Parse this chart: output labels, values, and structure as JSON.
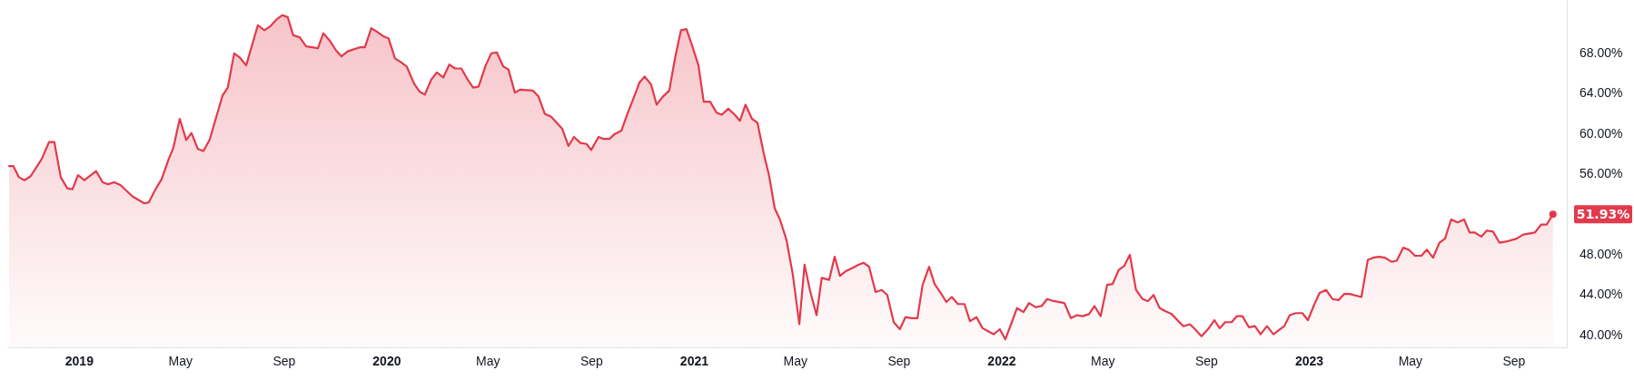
{
  "chart_data": {
    "type": "area",
    "x": [
      2018.773,
      2018.787,
      2018.805,
      2018.823,
      2018.843,
      2018.879,
      2018.903,
      2018.92,
      2018.941,
      2018.962,
      2018.979,
      2018.997,
      2019.018,
      2019.056,
      2019.077,
      2019.095,
      2019.115,
      2019.136,
      2019.174,
      2019.213,
      2019.227,
      2019.251,
      2019.269,
      2019.292,
      2019.307,
      2019.328,
      2019.349,
      2019.366,
      2019.387,
      2019.405,
      2019.425,
      2019.467,
      2019.484,
      2019.505,
      2019.523,
      2019.544,
      2019.582,
      2019.603,
      2019.623,
      2019.644,
      2019.662,
      2019.679,
      2019.697,
      2019.718,
      2019.739,
      2019.759,
      2019.777,
      2019.795,
      2019.815,
      2019.836,
      2019.854,
      2019.874,
      2019.913,
      2019.93,
      2019.951,
      2019.972,
      2019.99,
      2020.007,
      2020.028,
      2020.049,
      2020.066,
      2020.09,
      2020.108,
      2020.125,
      2020.146,
      2020.164,
      2020.185,
      2020.205,
      2020.223,
      2020.244,
      2020.264,
      2020.282,
      2020.3,
      2020.323,
      2020.341,
      2020.359,
      2020.38,
      2020.397,
      2020.418,
      2020.436,
      2020.477,
      2020.495,
      2020.515,
      2020.536,
      2020.572,
      2020.592,
      2020.61,
      2020.631,
      2020.651,
      2020.666,
      2020.69,
      2020.707,
      2020.725,
      2020.743,
      2020.764,
      2020.784,
      2020.802,
      2020.823,
      2020.84,
      2020.861,
      2020.879,
      2020.899,
      2020.92,
      2020.938,
      2020.958,
      2020.976,
      2020.994,
      2021.015,
      2021.032,
      2021.053,
      2021.074,
      2021.091,
      2021.112,
      2021.133,
      2021.15,
      2021.168,
      2021.189,
      2021.207,
      2021.227,
      2021.245,
      2021.263,
      2021.28,
      2021.301,
      2021.322,
      2021.343,
      2021.36,
      2021.378,
      2021.399,
      2021.416,
      2021.44,
      2021.458,
      2021.475,
      2021.496,
      2021.517,
      2021.535,
      2021.552,
      2021.57,
      2021.591,
      2021.611,
      2021.629,
      2021.65,
      2021.67,
      2021.688,
      2021.709,
      2021.727,
      2021.744,
      2021.765,
      2021.783,
      2021.803,
      2021.821,
      2021.839,
      2021.859,
      2021.88,
      2021.898,
      2021.919,
      2021.939,
      2021.957,
      2021.975,
      2021.995,
      2022.013,
      2022.034,
      2022.051,
      2022.072,
      2022.09,
      2022.111,
      2022.131,
      2022.149,
      2022.17,
      2022.205,
      2022.226,
      2022.246,
      2022.264,
      2022.285,
      2022.303,
      2022.323,
      2022.344,
      2022.362,
      2022.382,
      2022.4,
      2022.418,
      2022.438,
      2022.459,
      2022.477,
      2022.495,
      2022.515,
      2022.533,
      2022.554,
      2022.592,
      2022.613,
      2022.63,
      2022.651,
      2022.672,
      2022.693,
      2022.71,
      2022.728,
      2022.749,
      2022.766,
      2022.784,
      2022.805,
      2022.825,
      2022.843,
      2022.864,
      2022.885,
      2022.902,
      2022.92,
      2022.938,
      2022.958,
      2022.979,
      2022.997,
      2023.017,
      2023.035,
      2023.056,
      2023.077,
      2023.097,
      2023.115,
      2023.133,
      2023.171,
      2023.192,
      2023.209,
      2023.227,
      2023.248,
      2023.269,
      2023.286,
      2023.307,
      2023.325,
      2023.345,
      2023.366,
      2023.384,
      2023.404,
      2023.425,
      2023.443,
      2023.463,
      2023.484,
      2023.505,
      2023.523,
      2023.54,
      2023.561,
      2023.579,
      2023.599,
      2023.62,
      2023.641,
      2023.676,
      2023.697,
      2023.715,
      2023.735,
      2023.756,
      2023.774,
      2023.794
    ],
    "series": [
      {
        "color": "#e23a4b",
        "values": [
          56.7,
          56.7,
          55.6,
          55.3,
          55.7,
          57.4,
          59.1,
          59.1,
          55.6,
          54.5,
          54.4,
          55.8,
          55.3,
          56.2,
          55.1,
          54.9,
          55.1,
          54.8,
          53.7,
          53.0,
          53.1,
          54.5,
          55.4,
          57.4,
          58.5,
          61.4,
          59.3,
          60.0,
          58.4,
          58.2,
          59.3,
          63.7,
          64.5,
          67.9,
          67.5,
          66.7,
          70.7,
          70.2,
          70.6,
          71.3,
          71.7,
          71.5,
          69.7,
          69.5,
          68.6,
          68.5,
          68.4,
          69.9,
          69.2,
          68.2,
          67.6,
          68.1,
          68.5,
          68.5,
          70.4,
          70.0,
          69.6,
          69.4,
          67.4,
          67.0,
          66.6,
          64.9,
          64.1,
          63.8,
          65.3,
          66.0,
          65.5,
          66.8,
          66.4,
          66.4,
          65.3,
          64.5,
          64.6,
          66.7,
          67.9,
          68.0,
          66.6,
          66.3,
          64.0,
          64.3,
          64.2,
          63.6,
          61.9,
          61.6,
          60.4,
          58.7,
          59.6,
          59.0,
          58.9,
          58.3,
          59.6,
          59.4,
          59.4,
          59.9,
          60.2,
          61.9,
          63.3,
          65.0,
          65.6,
          64.8,
          62.8,
          63.6,
          64.2,
          67.3,
          70.2,
          70.3,
          68.7,
          66.7,
          63.1,
          63.1,
          62.0,
          61.8,
          62.4,
          61.8,
          61.2,
          62.8,
          61.4,
          61.0,
          58.0,
          55.7,
          52.5,
          51.4,
          49.4,
          45.9,
          41.0,
          46.9,
          44.3,
          41.9,
          45.6,
          45.4,
          47.7,
          45.8,
          46.3,
          46.6,
          46.9,
          47.1,
          46.7,
          44.2,
          44.4,
          43.9,
          41.2,
          40.5,
          41.7,
          41.6,
          41.6,
          44.9,
          46.7,
          45.0,
          44.1,
          43.2,
          43.7,
          43.0,
          43.0,
          41.3,
          41.7,
          40.6,
          40.3,
          40.0,
          40.5,
          39.5,
          41.2,
          42.6,
          42.2,
          43.1,
          42.7,
          42.8,
          43.5,
          43.3,
          43.1,
          41.6,
          41.9,
          41.8,
          42.0,
          42.8,
          41.8,
          44.9,
          45.0,
          46.4,
          46.8,
          47.9,
          44.4,
          43.5,
          43.3,
          43.9,
          42.6,
          42.3,
          42.0,
          40.8,
          41.0,
          40.5,
          39.8,
          40.5,
          41.4,
          40.6,
          41.2,
          41.2,
          41.8,
          41.8,
          40.7,
          40.8,
          40.0,
          40.8,
          40.0,
          40.4,
          40.8,
          41.9,
          42.1,
          42.1,
          41.4,
          42.9,
          44.1,
          44.4,
          43.5,
          43.4,
          44.0,
          44.0,
          43.7,
          47.4,
          47.6,
          47.7,
          47.6,
          47.2,
          47.3,
          48.6,
          48.4,
          47.8,
          47.8,
          48.4,
          47.6,
          49.1,
          49.5,
          51.4,
          51.1,
          51.4,
          50.1,
          50.1,
          49.7,
          50.3,
          50.2,
          49.1,
          49.2,
          49.5,
          49.9,
          50.0,
          50.1,
          50.9,
          50.9,
          51.93
        ]
      }
    ],
    "xlim": [
      2018.767,
      2023.839
    ],
    "xticks": [
      {
        "value": 2019,
        "label": "2019"
      },
      {
        "value": 2019.329,
        "label": "May"
      },
      {
        "value": 2019.666,
        "label": "Sep"
      },
      {
        "value": 2020,
        "label": "2020"
      },
      {
        "value": 2020.329,
        "label": "May"
      },
      {
        "value": 2020.666,
        "label": "Sep"
      },
      {
        "value": 2021,
        "label": "2021"
      },
      {
        "value": 2021.329,
        "label": "May"
      },
      {
        "value": 2021.666,
        "label": "Sep"
      },
      {
        "value": 2022,
        "label": "2022"
      },
      {
        "value": 2022.329,
        "label": "May"
      },
      {
        "value": 2022.666,
        "label": "Sep"
      },
      {
        "value": 2023,
        "label": "2023"
      },
      {
        "value": 2023.329,
        "label": "May"
      },
      {
        "value": 2023.666,
        "label": "Sep"
      }
    ],
    "ylim": [
      38.7,
      73.2
    ],
    "yticks": [
      {
        "value": 40,
        "label": "40.00%"
      },
      {
        "value": 44,
        "label": "44.00%"
      },
      {
        "value": 48,
        "label": "48.00%"
      },
      {
        "value": 56,
        "label": "56.00%"
      },
      {
        "value": 60,
        "label": "60.00%"
      },
      {
        "value": 64,
        "label": "64.00%"
      },
      {
        "value": 68,
        "label": "68.00%"
      }
    ],
    "annotations": [
      {
        "text": "51.93%",
        "x": 2023.794,
        "y": 51.93
      }
    ]
  }
}
